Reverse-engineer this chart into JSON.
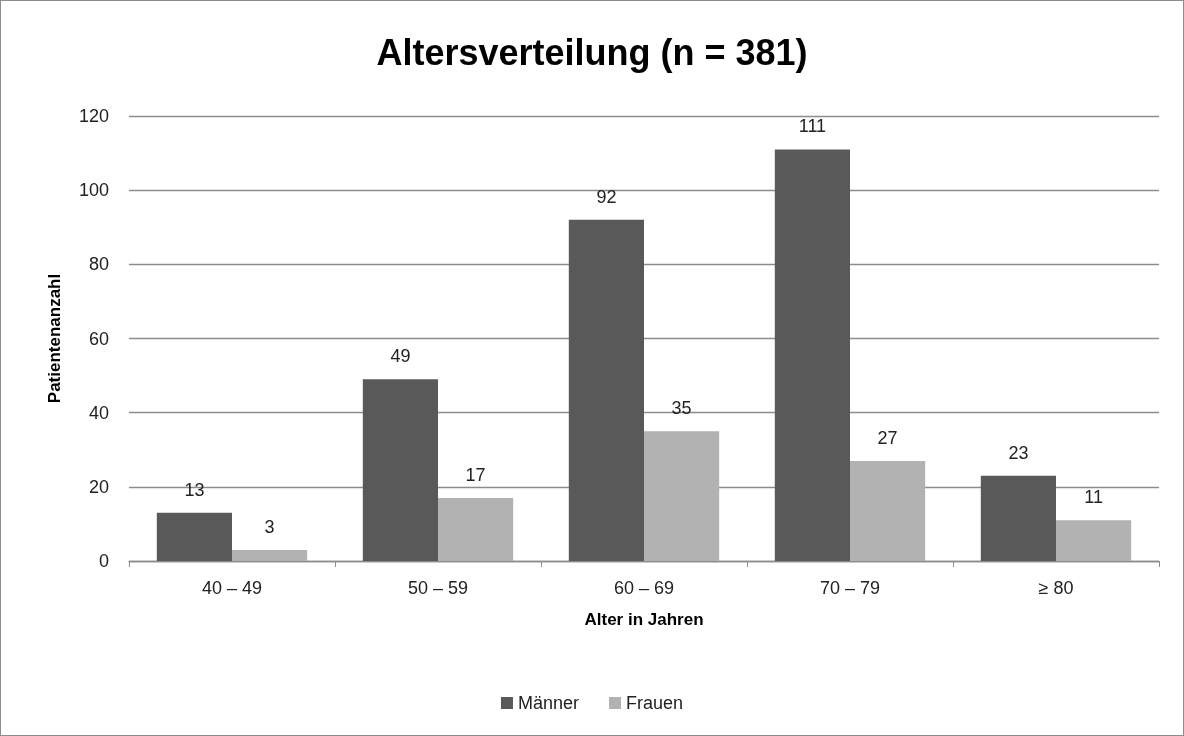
{
  "chart_data": {
    "type": "bar",
    "title": "Altersverteilung (n = 381)",
    "xlabel": "Alter in Jahren",
    "ylabel": "Patientenanzahl",
    "categories": [
      "40 – 49",
      "50 – 59",
      "60 – 69",
      "70 – 79",
      "≥ 80"
    ],
    "series": [
      {
        "name": "Männer",
        "color": "#595959",
        "values": [
          13,
          49,
          92,
          111,
          23
        ]
      },
      {
        "name": "Frauen",
        "color": "#b2b2b2",
        "values": [
          3,
          17,
          35,
          27,
          11
        ]
      }
    ],
    "ylim": [
      0,
      120
    ],
    "yticks": [
      0,
      20,
      40,
      60,
      80,
      100,
      120
    ],
    "grid": "y",
    "legend": "bottom",
    "data_labels": true
  }
}
